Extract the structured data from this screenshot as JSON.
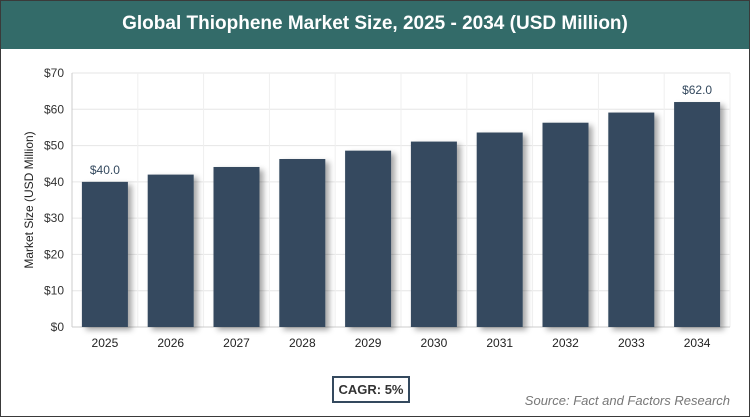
{
  "chart_data": {
    "type": "bar",
    "title": "Global Thiophene Market Size, 2025 - 2034 (USD Million)",
    "ylabel": "Market Size (USD Million)",
    "xlabel": "",
    "categories": [
      "2025",
      "2026",
      "2027",
      "2028",
      "2029",
      "2030",
      "2031",
      "2032",
      "2033",
      "2034"
    ],
    "values": [
      40.0,
      42.0,
      44.1,
      46.3,
      48.6,
      51.1,
      53.6,
      56.3,
      59.1,
      62.0
    ],
    "data_labels": {
      "0": "$40.0",
      "9": "$62.0"
    },
    "ylim": [
      0,
      70
    ],
    "yticks": [
      "$0",
      "$10",
      "$20",
      "$30",
      "$40",
      "$50",
      "$60",
      "$70"
    ],
    "grid": true,
    "bar_color": "#34495e",
    "title_bar_color": "#336b69"
  },
  "cagr": "CAGR: 5%",
  "source": "Source: Fact and Factors Research"
}
